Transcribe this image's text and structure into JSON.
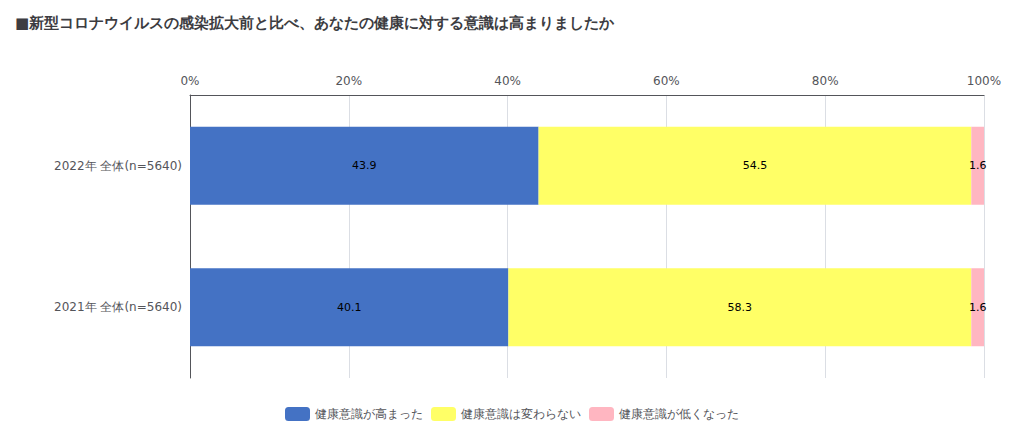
{
  "chart_data": {
    "type": "bar",
    "title": "■新型コロナウイルスの感染拡大前と比べ、あなたの健康に対する意識は高まりましたか",
    "orientation": "horizontal",
    "stacked": true,
    "categories": [
      "2022年 全体(n=5640)",
      "2021年 全体(n=5640)"
    ],
    "series": [
      {
        "name": "健康意識が高まった",
        "color": "#4472C4",
        "values": [
          43.9,
          40.1
        ]
      },
      {
        "name": "健康意識は変わらない",
        "color": "#FFFF66",
        "values": [
          54.5,
          58.3
        ]
      },
      {
        "name": "健康意識が低くなった",
        "color": "#FFB6C1",
        "values": [
          1.6,
          1.6
        ]
      }
    ],
    "xlim": [
      0,
      100
    ],
    "xticks": [
      {
        "value": 0,
        "label": "0%"
      },
      {
        "value": 20,
        "label": "20%"
      },
      {
        "value": 40,
        "label": "40%"
      },
      {
        "value": 60,
        "label": "60%"
      },
      {
        "value": 80,
        "label": "80%"
      },
      {
        "value": 100,
        "label": "100%"
      }
    ],
    "grid": true,
    "data_labels": true,
    "legend": "bottom"
  }
}
